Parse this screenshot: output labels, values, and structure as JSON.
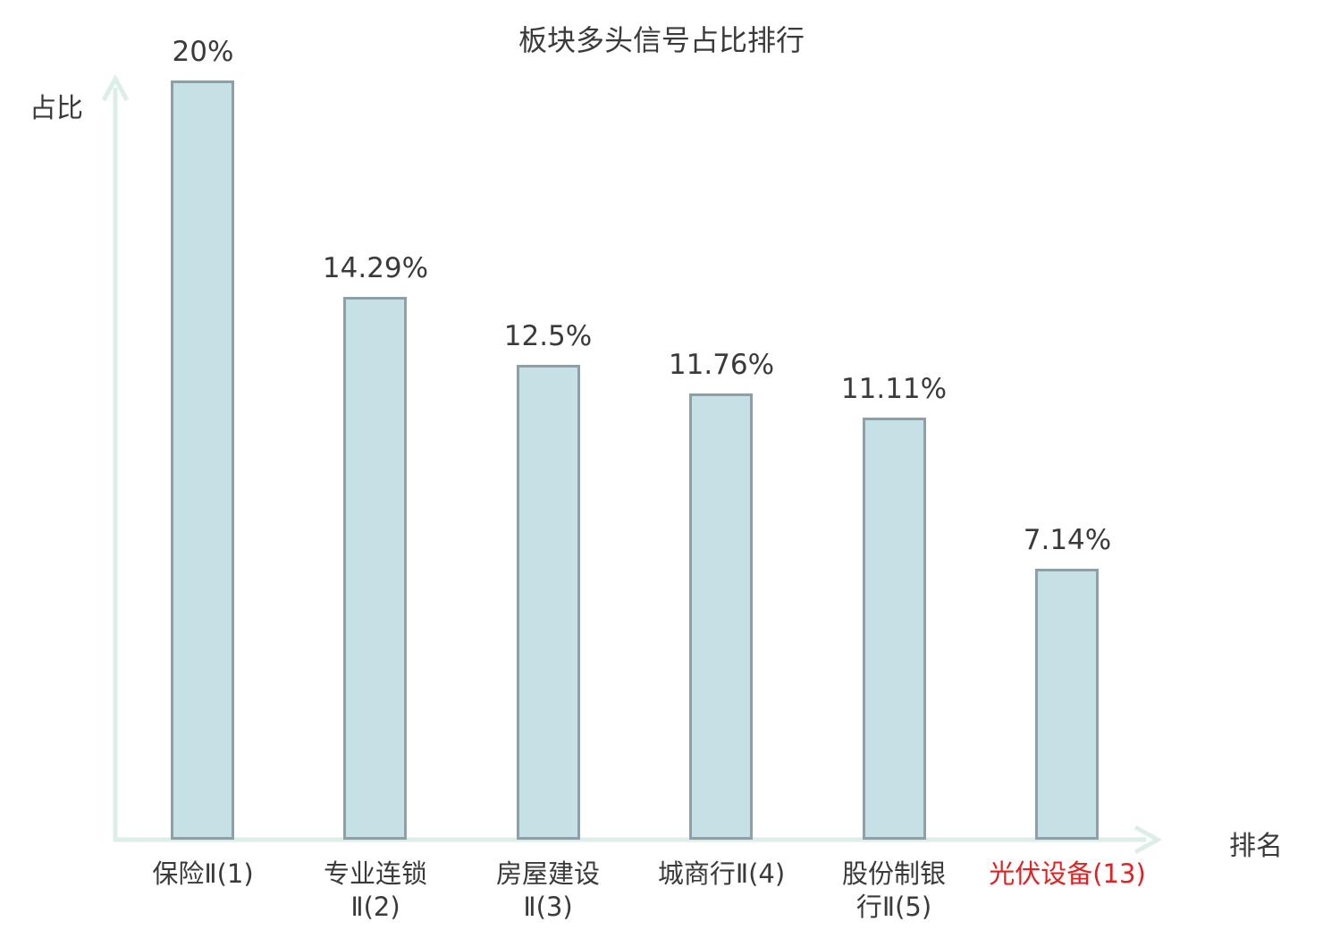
{
  "colors": {
    "bar_fill": "#c5e1e6",
    "bar_border": "#8ca0a5",
    "axis": "#ddeee8",
    "text": "#3a3a3a",
    "highlight_text": "#e02222"
  },
  "chart_data": {
    "type": "bar",
    "title": "板块多头信号占比排行",
    "xlabel": "排名",
    "ylabel": "占比",
    "categories": [
      "保险Ⅱ(1)",
      "专业连锁Ⅱ(2)",
      "房屋建设Ⅱ(3)",
      "城商行Ⅱ(4)",
      "股份制银行Ⅱ(5)",
      "光伏设备(13)"
    ],
    "category_display": [
      "保险Ⅱ(1)",
      "专业连锁\nⅡ(2)",
      "房屋建设\nⅡ(3)",
      "城商行Ⅱ(4)",
      "股份制银\n行Ⅱ(5)",
      "光伏设备(13)"
    ],
    "values": [
      20,
      14.29,
      12.5,
      11.76,
      11.11,
      7.14
    ],
    "value_labels": [
      "20%",
      "14.29%",
      "12.5%",
      "11.76%",
      "11.11%",
      "7.14%"
    ],
    "highlighted_index": 5,
    "ylim": [
      0,
      20
    ],
    "grid": false,
    "legend": "none",
    "axis_style": "light-mint arrows, no ticks"
  }
}
